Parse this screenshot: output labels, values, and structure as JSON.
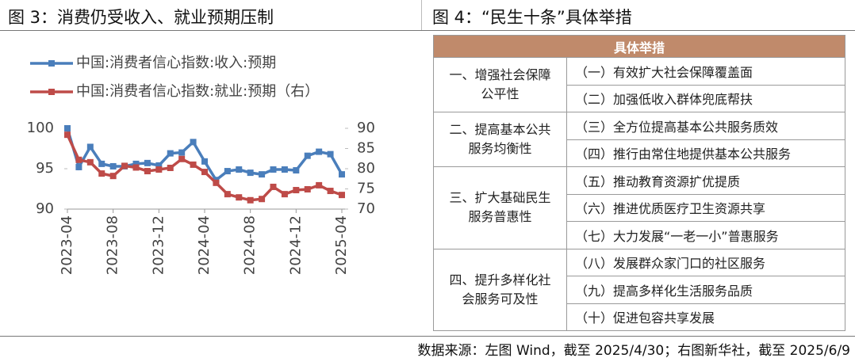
{
  "left_title": "图 3：消费仍受收入、就业预期压制",
  "right_title": "图 4：“民生十条”具体举措",
  "chart_data": {
    "type": "line",
    "categories": [
      "2023-04",
      null,
      null,
      null,
      "2023-08",
      null,
      null,
      null,
      "2023-12",
      null,
      null,
      null,
      "2024-04",
      null,
      null,
      null,
      "2024-08",
      null,
      null,
      null,
      "2024-12",
      null,
      null,
      null,
      "2025-04"
    ],
    "series": [
      {
        "name": "中国:消费者信心指数:收入:预期",
        "color": "#4a7ebb",
        "values": [
          100,
          95.2,
          97.7,
          95.6,
          95.3,
          95.3,
          95.6,
          95.7,
          95.4,
          96.9,
          97.0,
          98.3,
          95.9,
          93.6,
          94.7,
          94.9,
          94.5,
          94.3,
          94.9,
          94.9,
          94.8,
          96.6,
          97.1,
          96.8,
          94.3
        ]
      },
      {
        "name": "中国:消费者信心指数:就业:预期（右）",
        "color": "#be4b48",
        "axis": "y2",
        "values": [
          88.4,
          82.2,
          81.6,
          78.8,
          78.2,
          80.7,
          80.3,
          79.4,
          79.8,
          80.2,
          82.4,
          81.0,
          79.2,
          76.5,
          73.7,
          72.9,
          72.2,
          72.5,
          75.5,
          73.7,
          74.7,
          74.9,
          75.9,
          74.5,
          73.5
        ]
      }
    ],
    "ylim": [
      90,
      100
    ],
    "yticks": [
      90,
      95,
      100
    ],
    "y2lim": [
      70,
      90
    ],
    "y2ticks": [
      70,
      75,
      80,
      85,
      90
    ],
    "grid": false,
    "legend": "top-left"
  },
  "table": {
    "header": "具体举措",
    "groups": [
      {
        "label": "一、增强社会保障公平性",
        "items": [
          "（一）有效扩大社会保障覆盖面",
          "（二）加强低收入群体兜底帮扶"
        ]
      },
      {
        "label": "二、提高基本公共服务均衡性",
        "items": [
          "（三）全方位提高基本公共服务质效",
          "（四）推行由常住地提供基本公共服务"
        ]
      },
      {
        "label": "三、扩大基础民生服务普惠性",
        "items": [
          "（五）推动教育资源扩优提质",
          "（六）推进优质医疗卫生资源共享",
          "（七）大力发展“一老一小”普惠服务"
        ]
      },
      {
        "label": "四、提升多样化社会服务可及性",
        "items": [
          "（八）发展群众家门口的社区服务",
          "（九）提高多样化生活服务品质",
          "（十）促进包容共享发展"
        ]
      }
    ]
  },
  "source": "数据来源：左图 Wind，截至 2025/4/30；右图新华社，截至 2025/6/9"
}
